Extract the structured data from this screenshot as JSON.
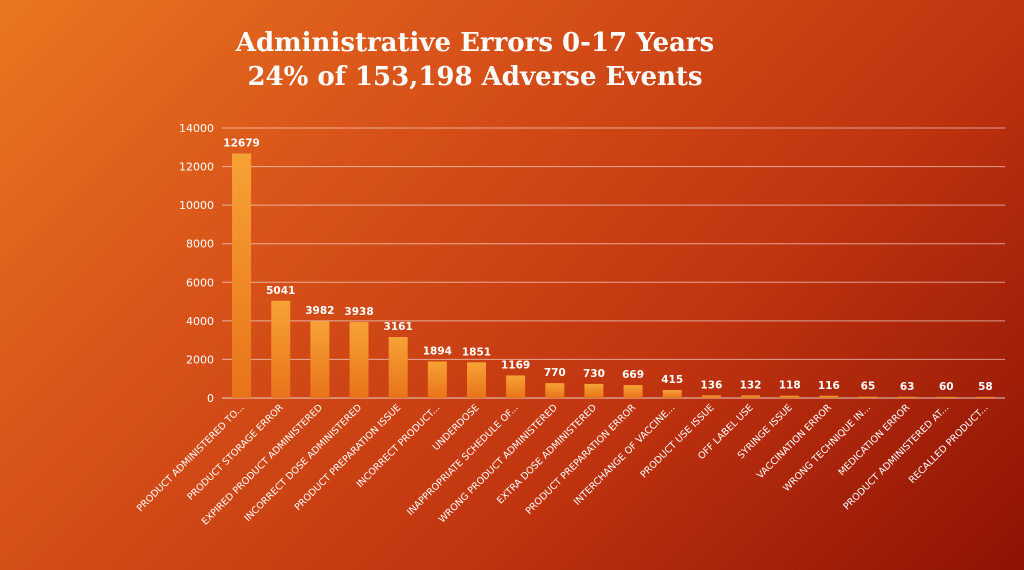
{
  "title_line1": "Administrative Errors 0-17 Years",
  "title_line2": "24% of 153,198 Adverse Events",
  "colors": {
    "bar_top": "#f7a235",
    "bar_bottom": "#e8731a",
    "text": "#ffffff",
    "grid": "#ffffff"
  },
  "chart_data": {
    "type": "bar",
    "title": "Administrative Errors 0-17 Years",
    "subtitle": "24% of 153,198 Adverse Events",
    "xlabel": "",
    "ylabel": "",
    "ylim": [
      0,
      14000
    ],
    "yticks": [
      0,
      2000,
      4000,
      6000,
      8000,
      10000,
      12000,
      14000
    ],
    "grid": true,
    "categories": [
      "PRODUCT ADMINISTERED TO...",
      "PRODUCT STORAGE ERROR",
      "EXPIRED PRODUCT ADMINISTERED",
      "INCORRECT DOSE ADMINISTERED",
      "PRODUCT PREPARATION ISSUE",
      "INCORRECT PRODUCT...",
      "UNDERDOSE",
      "INAPPROPRIATE SCHEDULE OF...",
      "WRONG PRODUCT ADMINISTERED",
      "EXTRA DOSE ADMINISTERED",
      "PRODUCT PREPARATION ERROR",
      "INTERCHANGE OF VACCINE...",
      "PRODUCT USE ISSUE",
      "OFF LABEL USE",
      "SYRINGE ISSUE",
      "VACCINATION ERROR",
      "WRONG TECHNIQUE IN...",
      "MEDICATION ERROR",
      "PRODUCT ADMINISTERED AT...",
      "RECALLED PRODUCT..."
    ],
    "values": [
      12679,
      5041,
      3982,
      3938,
      3161,
      1894,
      1851,
      1169,
      770,
      730,
      669,
      415,
      136,
      132,
      118,
      116,
      65,
      63,
      60,
      58
    ]
  }
}
